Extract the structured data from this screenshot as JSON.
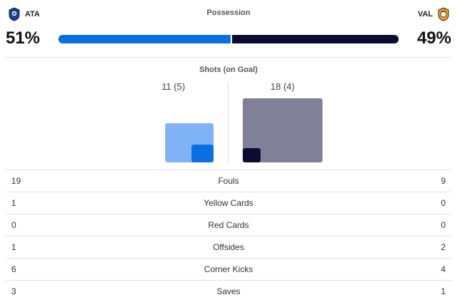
{
  "home": {
    "abbr": "ATA",
    "possession": "51%",
    "possession_value": 51,
    "shots": "11 (5)",
    "shots_total": 11,
    "shots_on_goal": 5
  },
  "away": {
    "abbr": "VAL",
    "possession": "49%",
    "possession_value": 49,
    "shots": "18 (4)",
    "shots_total": 18,
    "shots_on_goal": 4
  },
  "possession_title": "Possession",
  "shots_title": "Shots (on Goal)",
  "colors": {
    "home_primary": "#0a6fe0",
    "home_light": "#7fb3f5",
    "away_primary": "#0b0b33",
    "away_light": "#808098"
  },
  "stats": [
    {
      "label": "Fouls",
      "home": "19",
      "away": "9"
    },
    {
      "label": "Yellow Cards",
      "home": "1",
      "away": "0"
    },
    {
      "label": "Red Cards",
      "home": "0",
      "away": "0"
    },
    {
      "label": "Offsides",
      "home": "1",
      "away": "2"
    },
    {
      "label": "Corner Kicks",
      "home": "6",
      "away": "4"
    },
    {
      "label": "Saves",
      "home": "3",
      "away": "1"
    }
  ]
}
